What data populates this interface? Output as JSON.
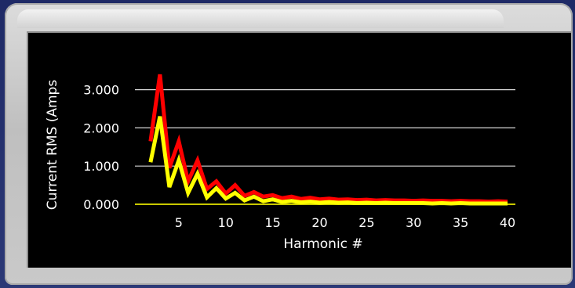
{
  "chart_data": {
    "type": "line",
    "xlabel": "Harmonic #",
    "ylabel": "Current RMS (Amps",
    "xlim": [
      0,
      40
    ],
    "ylim": [
      0,
      3.5
    ],
    "x_ticks": [
      "5",
      "10",
      "15",
      "20",
      "25",
      "30",
      "35",
      "40"
    ],
    "y_ticks": [
      "0.000",
      "1.000",
      "2.000",
      "3.000"
    ],
    "grid": "horizontal",
    "legend": "none",
    "x": [
      2,
      3,
      4,
      5,
      6,
      7,
      8,
      9,
      10,
      11,
      12,
      13,
      14,
      15,
      16,
      17,
      18,
      19,
      20,
      21,
      22,
      23,
      24,
      25,
      26,
      27,
      28,
      29,
      30,
      31,
      32,
      33,
      34,
      35,
      36,
      37,
      38,
      39,
      40
    ],
    "series": [
      {
        "color": "#ff0000",
        "values": [
          1.65,
          3.4,
          0.95,
          1.65,
          0.6,
          1.15,
          0.4,
          0.6,
          0.28,
          0.5,
          0.22,
          0.32,
          0.2,
          0.24,
          0.16,
          0.2,
          0.14,
          0.17,
          0.13,
          0.15,
          0.12,
          0.13,
          0.11,
          0.12,
          0.1,
          0.11,
          0.1,
          0.1,
          0.09,
          0.1,
          0.09,
          0.09,
          0.08,
          0.09,
          0.08,
          0.08,
          0.07,
          0.08,
          0.07
        ]
      },
      {
        "color": "#ffff00",
        "values": [
          1.1,
          2.3,
          0.45,
          1.15,
          0.3,
          0.8,
          0.18,
          0.42,
          0.15,
          0.3,
          0.1,
          0.2,
          0.08,
          0.13,
          0.06,
          0.09,
          0.05,
          0.07,
          0.04,
          0.06,
          0.04,
          0.05,
          0.03,
          0.04,
          0.03,
          0.04,
          0.03,
          0.03,
          0.03,
          0.03,
          0.02,
          0.03,
          0.02,
          0.03,
          0.02,
          0.02,
          0.02,
          0.02,
          0.02
        ]
      }
    ],
    "baseline_color": "#c8c800"
  }
}
